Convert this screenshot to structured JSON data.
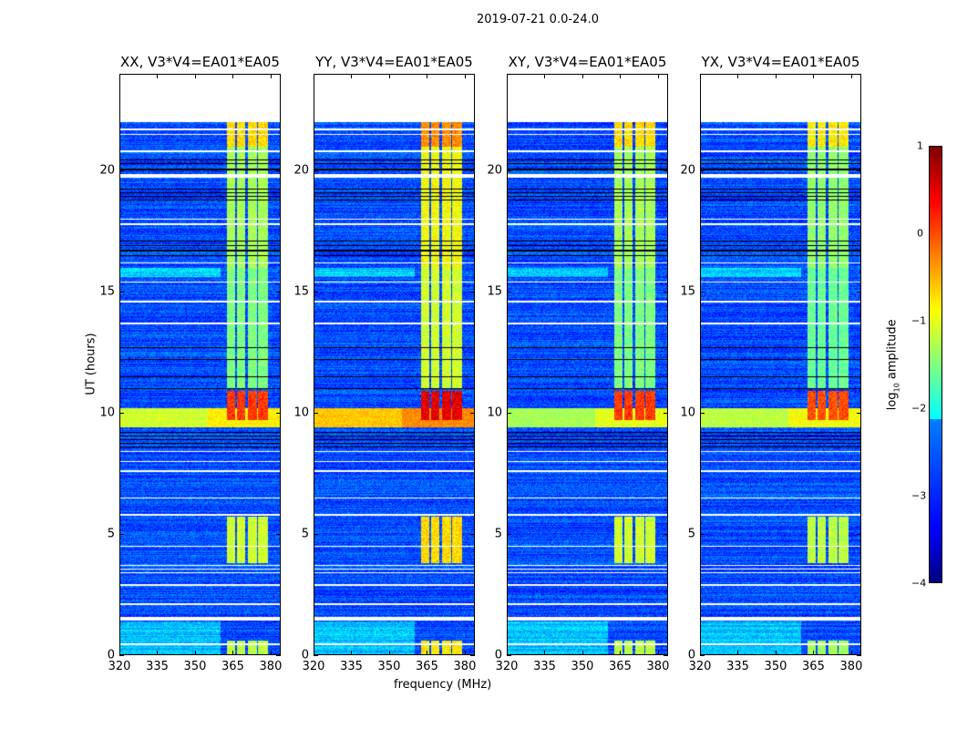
{
  "chart_data": {
    "type": "heatmap",
    "suptitle": "2019-07-21 0.0-24.0",
    "xlabel": "frequency (MHz)",
    "ylabel": "UT (hours)",
    "xlim": [
      320,
      384
    ],
    "ylim": [
      0,
      24
    ],
    "xticks": [
      "320",
      "335",
      "350",
      "365",
      "380"
    ],
    "xtick_values": [
      320,
      335,
      350,
      365,
      380
    ],
    "yticks": [
      "0",
      "5",
      "10",
      "15",
      "20"
    ],
    "ytick_values": [
      0,
      5,
      10,
      15,
      20
    ],
    "colorbar": {
      "label": "log10 amplitude",
      "label_main": "log",
      "label_sub": "10",
      "label_end": " amplitude",
      "range": [
        -4,
        1
      ],
      "ticks": [
        "1",
        "0",
        "−1",
        "−2",
        "−3",
        "−4"
      ],
      "tick_values": [
        1,
        0,
        -1,
        -2,
        -3,
        -4
      ],
      "colormap": "jet"
    },
    "panels": [
      {
        "title": "XX, V3*V4=EA01*EA05",
        "band_boost": 0,
        "stripe_level": -0.8
      },
      {
        "title": "YY, V3*V4=EA01*EA05",
        "band_boost": 0.4,
        "stripe_level": -0.3
      },
      {
        "title": "XY, V3*V4=EA01*EA05",
        "band_boost": 0,
        "stripe_level": -1.0
      },
      {
        "title": "YX, V3*V4=EA01*EA05",
        "band_boost": -0.1,
        "stripe_level": -0.9
      }
    ],
    "background_level": -3.0,
    "data_end_hour": 22,
    "rfi_bands_mhz": [
      [
        362.5,
        366
      ],
      [
        366.5,
        370
      ],
      [
        371,
        374.5
      ],
      [
        375,
        379
      ]
    ],
    "rfi_activity": [
      {
        "hours": [
          0,
          0.6
        ],
        "level": -1.2
      },
      {
        "hours": [
          3.8,
          5.7
        ],
        "level": -1.1
      },
      {
        "hours": [
          9.7,
          10.9
        ],
        "level": 0.1
      },
      {
        "hours": [
          11,
          16
        ],
        "level": -1.5
      },
      {
        "hours": [
          16,
          21
        ],
        "level": -1.3
      },
      {
        "hours": [
          21,
          22
        ],
        "level": -0.7
      }
    ],
    "broadband_stripe_hours": [
      9.4,
      10.2
    ],
    "flagged_white_hours": [
      0.45,
      1.45,
      1.5,
      1.55,
      2.1,
      2.9,
      3.4,
      3.55,
      3.7,
      4.5,
      5.8,
      6.5,
      7.6,
      8.0,
      8.4,
      13.7,
      14.6,
      15.4,
      16.2,
      17.8,
      18.0,
      19.75,
      19.8,
      19.85,
      20.8,
      21.5,
      21.7
    ],
    "flagged_black_hours": [
      8.6,
      8.75,
      8.9,
      9.05,
      9.2,
      11.0,
      11.5,
      12.2,
      12.7,
      16.5,
      16.7,
      16.9,
      17.1,
      18.8,
      18.95,
      19.1,
      19.25,
      20.05,
      20.3,
      20.45
    ]
  }
}
